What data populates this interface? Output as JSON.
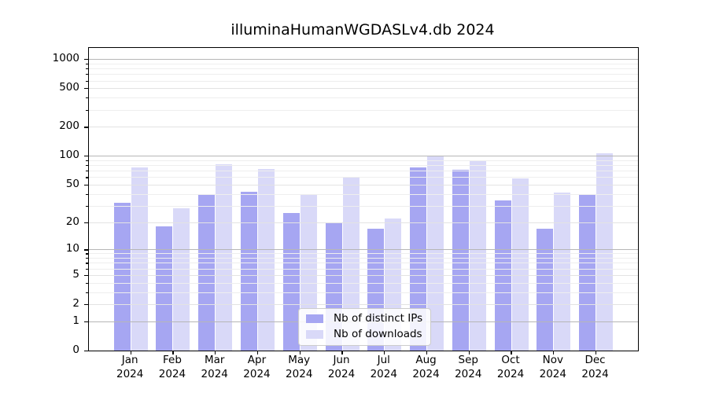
{
  "chart_data": {
    "type": "bar",
    "title": "illuminaHumanWGDASLv4.db 2024",
    "scale": "log1p",
    "categories": [
      "Jan",
      "Feb",
      "Mar",
      "Apr",
      "May",
      "Jun",
      "Jul",
      "Aug",
      "Sep",
      "Oct",
      "Nov",
      "Dec"
    ],
    "year": "2024",
    "series": [
      {
        "name": "Nb of distinct IPs",
        "color": "#a6a6f2",
        "values": [
          32,
          18,
          39,
          42,
          25,
          20,
          17,
          76,
          71,
          34,
          17,
          40
        ]
      },
      {
        "name": "Nb of downloads",
        "color": "#d9d9f8",
        "values": [
          76,
          28,
          82,
          73,
          40,
          60,
          22,
          99,
          90,
          58,
          41,
          107
        ]
      }
    ],
    "ylabel": "",
    "xlabel": "",
    "y_ticks": [
      0,
      1,
      2,
      5,
      10,
      20,
      50,
      100,
      200,
      500,
      1000
    ],
    "y_major_ticks": [
      1,
      10,
      100,
      1000
    ],
    "y_minor_mantissas": [
      3,
      4,
      6,
      7,
      8,
      9
    ],
    "y_axis_top": 1300,
    "ylim": [
      0,
      1300
    ],
    "grid": true,
    "legend_position": "bottom-center"
  }
}
